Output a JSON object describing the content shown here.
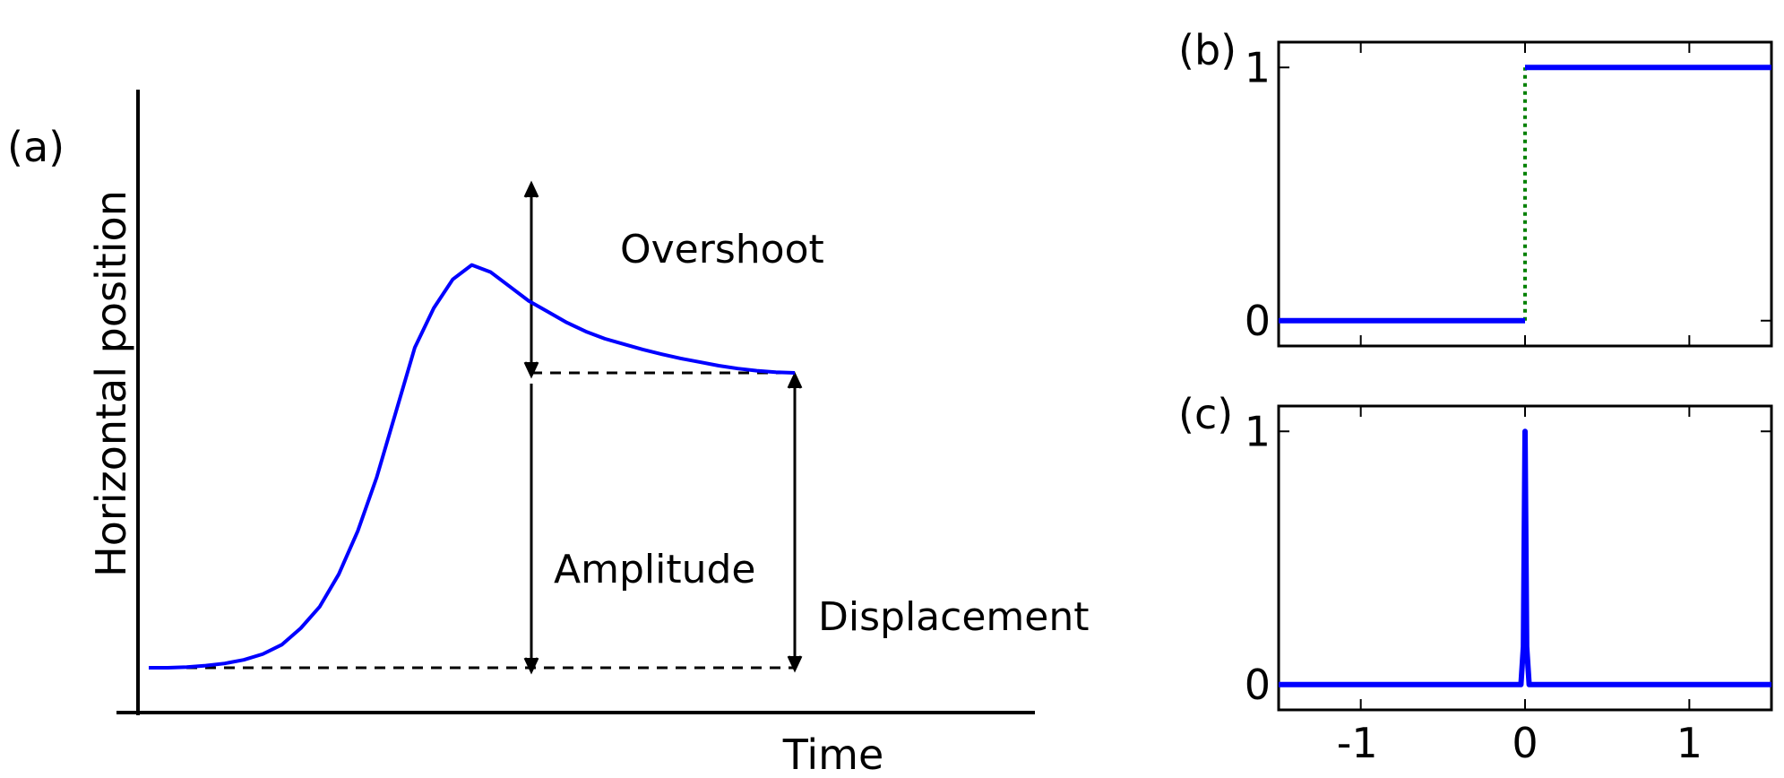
{
  "chart_data": [
    {
      "panel": "(a)",
      "type": "line",
      "xlabel": "Time",
      "ylabel": "Horizontal position",
      "grid": false,
      "x": [
        0,
        0.05,
        0.1,
        0.15,
        0.2,
        0.25,
        0.3,
        0.35,
        0.4,
        0.45,
        0.5,
        0.55,
        0.6,
        0.65,
        0.7,
        0.75,
        0.8,
        0.85,
        0.9,
        0.95,
        1.0,
        1.05,
        1.1,
        1.15,
        1.2,
        1.25,
        1.3,
        1.35,
        1.4,
        1.45,
        1.5,
        1.55,
        1.6,
        1.65,
        1.7
      ],
      "values": [
        0,
        0.0,
        0.002,
        0.006,
        0.012,
        0.022,
        0.038,
        0.064,
        0.11,
        0.17,
        0.26,
        0.38,
        0.53,
        0.71,
        0.89,
        1.0,
        1.08,
        1.12,
        1.1,
        1.06,
        1.02,
        0.99,
        0.96,
        0.935,
        0.915,
        0.9,
        0.885,
        0.872,
        0.86,
        0.85,
        0.84,
        0.832,
        0.826,
        0.822,
        0.82
      ],
      "annotations": [
        "Overshoot",
        "Amplitude",
        "Displacement"
      ],
      "line_color": "#0000ff"
    },
    {
      "panel": "(b)",
      "type": "line",
      "x": [
        -1.5,
        0,
        0,
        1.5
      ],
      "values": [
        0,
        0,
        1,
        1
      ],
      "xlim": [
        -1.5,
        1.5
      ],
      "ylim": [
        -0.1,
        1.1
      ],
      "yticks": [
        "0",
        "1"
      ],
      "connector_color": "#008000",
      "line_color": "#0000ff"
    },
    {
      "panel": "(c)",
      "type": "line",
      "x": [
        -1.5,
        -0.025,
        -0.01,
        0,
        0.01,
        0.025,
        1.5
      ],
      "values": [
        0,
        0,
        0.15,
        1,
        0.15,
        0,
        0
      ],
      "xlim": [
        -1.5,
        1.5
      ],
      "ylim": [
        -0.1,
        1.1
      ],
      "xticks": [
        "-1",
        "0",
        "1"
      ],
      "yticks": [
        "0",
        "1"
      ],
      "line_color": "#0000ff"
    }
  ]
}
